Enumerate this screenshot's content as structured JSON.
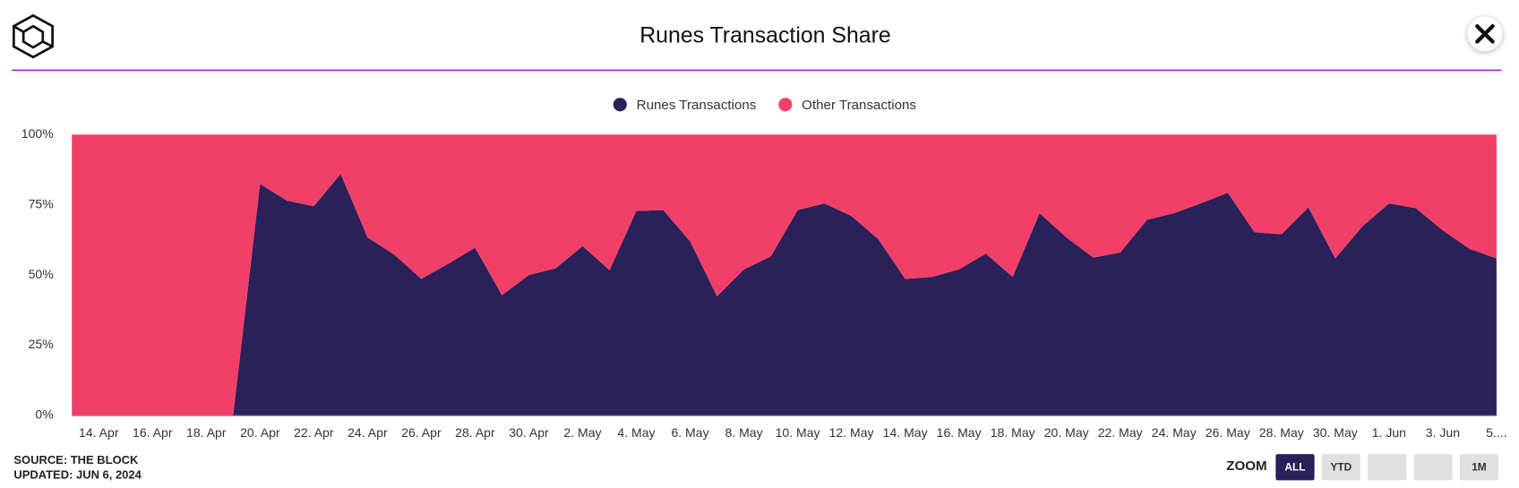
{
  "chart_data": {
    "type": "stacked_area",
    "title": "Runes Transaction Share",
    "categories": [
      null,
      "14. Apr",
      null,
      "16. Apr",
      null,
      "18. Apr",
      null,
      "20. Apr",
      null,
      "22. Apr",
      null,
      "24. Apr",
      null,
      "26. Apr",
      null,
      "28. Apr",
      null,
      "30. Apr",
      null,
      "2. May",
      null,
      "4. May",
      null,
      "6. May",
      null,
      "8. May",
      null,
      "10. May",
      null,
      "12. May",
      null,
      "14. May",
      null,
      "16. May",
      null,
      "18. May",
      null,
      "20. May",
      null,
      "22. May",
      null,
      "24. May",
      null,
      "26. May",
      null,
      "28. May",
      null,
      "30. May",
      null,
      "1. Jun",
      null,
      "3. Jun",
      null,
      "5...."
    ],
    "series": [
      {
        "name": "Runes Transactions",
        "color": "#2a205a",
        "values": [
          0,
          0,
          0,
          0,
          0,
          0,
          0,
          82.4,
          76.5,
          74.5,
          86,
          63.4,
          57.2,
          48.6,
          54,
          59.7,
          42.8,
          50,
          52.4,
          60.3,
          51.7,
          72.8,
          73.1,
          62,
          42.4,
          52,
          56.6,
          73.1,
          75.5,
          71,
          62.8,
          48.6,
          49.3,
          52,
          57.6,
          49.3,
          72,
          63.4,
          56.2,
          58,
          69.7,
          72,
          75.5,
          79.3,
          65.2,
          64.5,
          74.1,
          55.9,
          67.2,
          75.5,
          73.8,
          65.9,
          59.3,
          55.9
        ]
      },
      {
        "name": "Other Transactions",
        "color": "#f04068",
        "values": [
          100,
          100,
          100,
          100,
          100,
          100,
          100,
          17.6,
          23.5,
          25.5,
          14,
          36.6,
          42.8,
          51.4,
          46,
          40.3,
          57.2,
          50,
          47.6,
          39.7,
          48.3,
          27.2,
          26.9,
          38,
          57.6,
          48,
          43.4,
          26.9,
          24.5,
          29,
          37.2,
          51.4,
          50.7,
          48,
          42.4,
          50.7,
          28,
          36.6,
          43.8,
          42,
          30.3,
          28,
          24.5,
          20.7,
          34.8,
          35.5,
          25.9,
          44.1,
          32.8,
          24.5,
          26.2,
          34.1,
          40.7,
          44.1
        ]
      }
    ],
    "ylim": [
      0,
      100
    ],
    "yticks": [
      {
        "value": 0,
        "label": "0%"
      },
      {
        "value": 25,
        "label": "25%"
      },
      {
        "value": 50,
        "label": "50%"
      },
      {
        "value": 75,
        "label": "75%"
      },
      {
        "value": 100,
        "label": "100%"
      }
    ],
    "source": "SOURCE: THE BLOCK",
    "updated": "UPDATED: JUN 6, 2024",
    "zoom": {
      "label": "ZOOM",
      "buttons": [
        "ALL",
        "YTD",
        "",
        "",
        "1M"
      ]
    }
  }
}
